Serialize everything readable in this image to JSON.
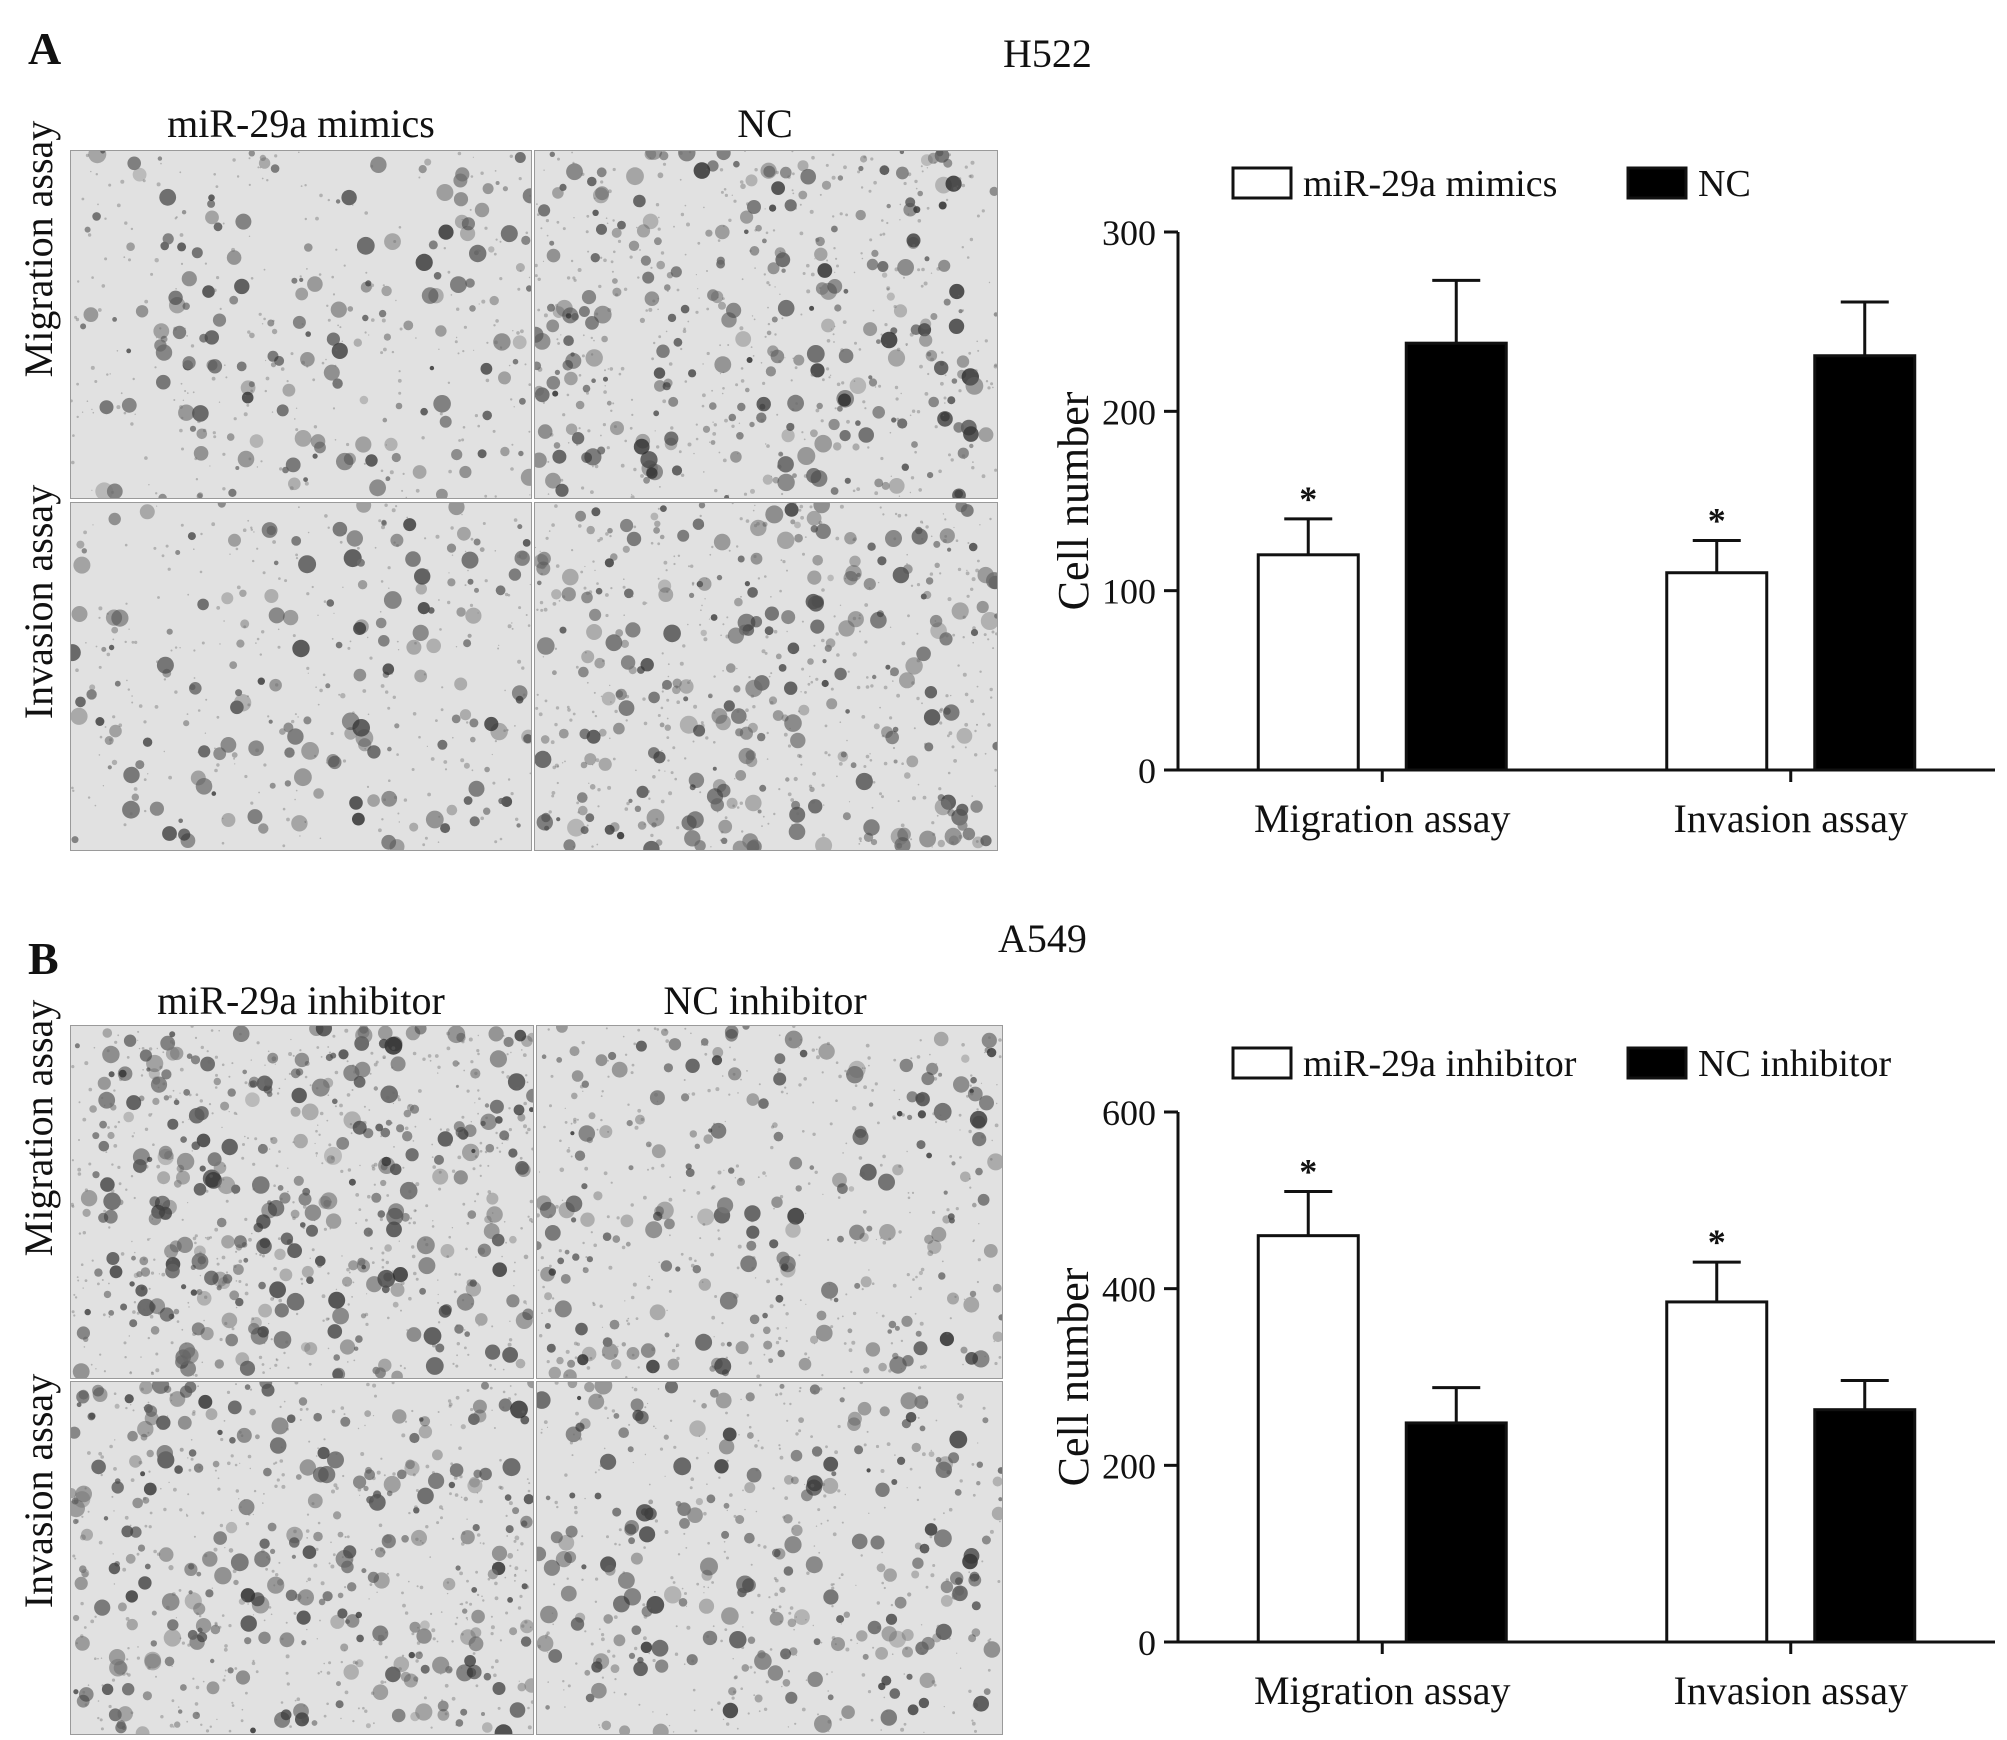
{
  "panels": [
    {
      "letter": "A",
      "cell_line": "H522",
      "columns": [
        "miR-29a mimics",
        "NC"
      ],
      "rows": [
        "Migration assay",
        "Invasion assay"
      ],
      "chart_data": {
        "type": "bar",
        "categories": [
          "Migration assay",
          "Invasion assay"
        ],
        "series": [
          {
            "name": "miR-29a mimics",
            "values": [
              120,
              110
            ],
            "errors": [
              20,
              18
            ],
            "color": "#ffffff"
          },
          {
            "name": "NC",
            "values": [
              238,
              231
            ],
            "errors": [
              35,
              30
            ],
            "color": "#000000"
          }
        ],
        "significance": [
          "*",
          "*"
        ],
        "ylabel": "Cell number",
        "ylim": [
          0,
          300
        ],
        "yticks": [
          0,
          100,
          200,
          300
        ],
        "legend": "top"
      }
    },
    {
      "letter": "B",
      "cell_line": "A549",
      "columns": [
        "miR-29a inhibitor",
        "NC inhibitor"
      ],
      "rows": [
        "Migration assay",
        "Invasion assay"
      ],
      "chart_data": {
        "type": "bar",
        "categories": [
          "Migration assay",
          "Invasion assay"
        ],
        "series": [
          {
            "name": "miR-29a inhibitor",
            "values": [
              460,
              385
            ],
            "errors": [
              50,
              45
            ],
            "color": "#ffffff"
          },
          {
            "name": "NC inhibitor",
            "values": [
              248,
              263
            ],
            "errors": [
              40,
              33
            ],
            "color": "#000000"
          }
        ],
        "significance": [
          "*",
          "*"
        ],
        "ylabel": "Cell number",
        "ylim": [
          0,
          600
        ],
        "yticks": [
          0,
          200,
          400,
          600
        ],
        "legend": "top"
      }
    }
  ]
}
